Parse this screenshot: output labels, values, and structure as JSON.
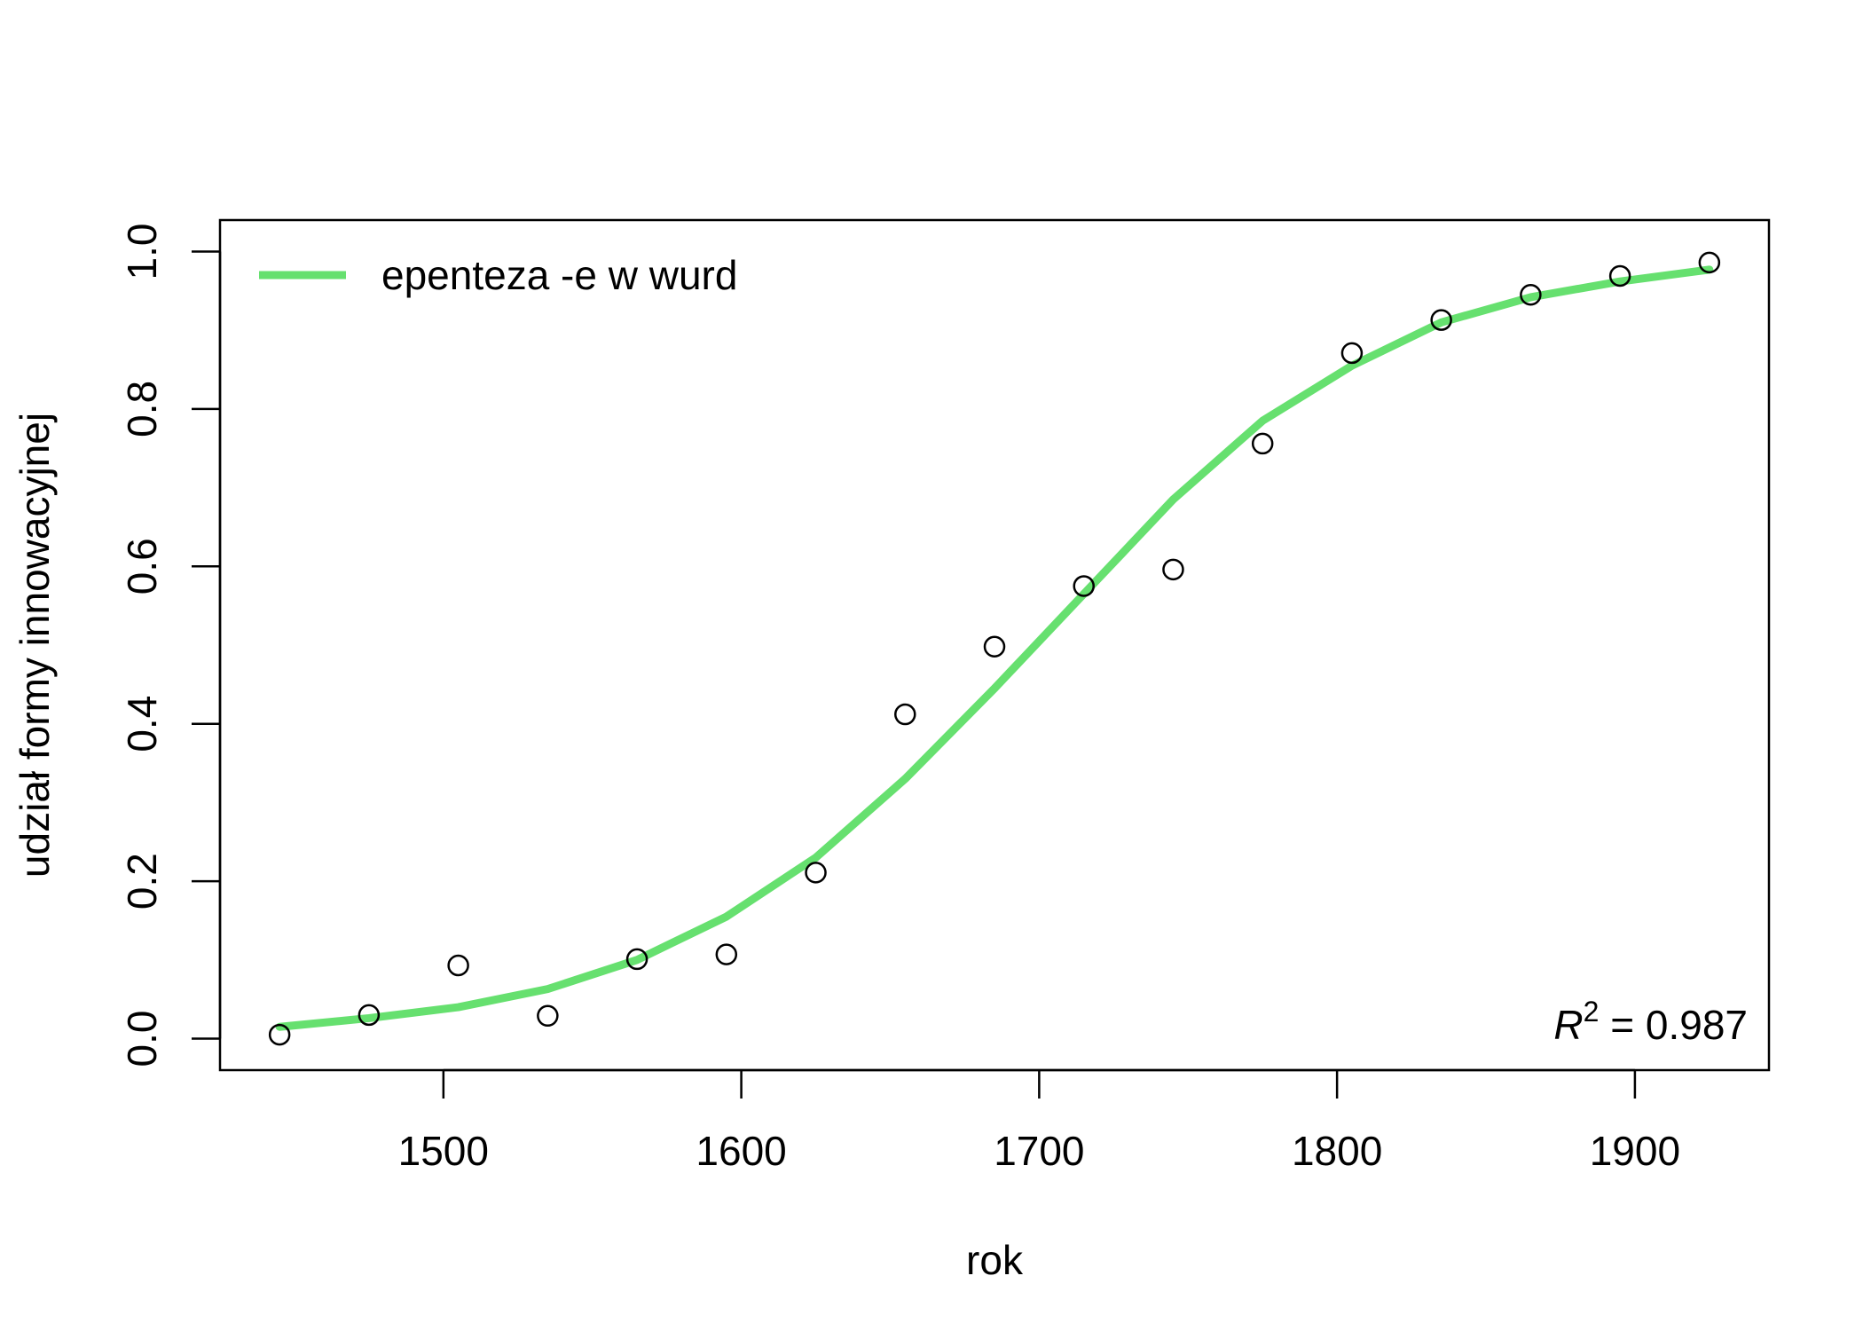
{
  "chart_data": {
    "type": "scatter",
    "xlabel": "rok",
    "ylabel": "udział formy innowacyjnej",
    "xlim": [
      1425,
      1945
    ],
    "ylim": [
      -0.04,
      1.04
    ],
    "x_ticks": [
      1500,
      1600,
      1700,
      1800,
      1900
    ],
    "y_ticks": [
      0.0,
      0.2,
      0.4,
      0.6,
      0.8,
      1.0
    ],
    "x_tick_labels": [
      "1500",
      "1600",
      "1700",
      "1800",
      "1900"
    ],
    "y_tick_labels": [
      "0.0",
      "0.2",
      "0.4",
      "0.6",
      "0.8",
      "1.0"
    ],
    "grid": false,
    "legend_position": "top-left",
    "series": [
      {
        "name": "epenteza -e w wurd",
        "kind": "line",
        "color": "#66e06f",
        "x": [
          1445,
          1475,
          1505,
          1535,
          1565,
          1595,
          1625,
          1655,
          1685,
          1715,
          1745,
          1775,
          1805,
          1835,
          1865,
          1895,
          1925
        ],
        "y": [
          0.015,
          0.026,
          0.04,
          0.063,
          0.1,
          0.155,
          0.23,
          0.33,
          0.445,
          0.565,
          0.685,
          0.785,
          0.855,
          0.91,
          0.942,
          0.962,
          0.977
        ]
      },
      {
        "kind": "points",
        "color": "#000000",
        "x": [
          1445,
          1475,
          1505,
          1535,
          1565,
          1595,
          1625,
          1655,
          1685,
          1715,
          1745,
          1775,
          1805,
          1835,
          1865,
          1895,
          1925
        ],
        "y": [
          0.005,
          0.03,
          0.093,
          0.029,
          0.101,
          0.107,
          0.211,
          0.412,
          0.498,
          0.575,
          0.596,
          0.756,
          0.871,
          0.913,
          0.945,
          0.969,
          0.986
        ]
      }
    ],
    "annotation": {
      "symbol": "R",
      "superscript": "2",
      "suffix": " = 0.987"
    }
  }
}
